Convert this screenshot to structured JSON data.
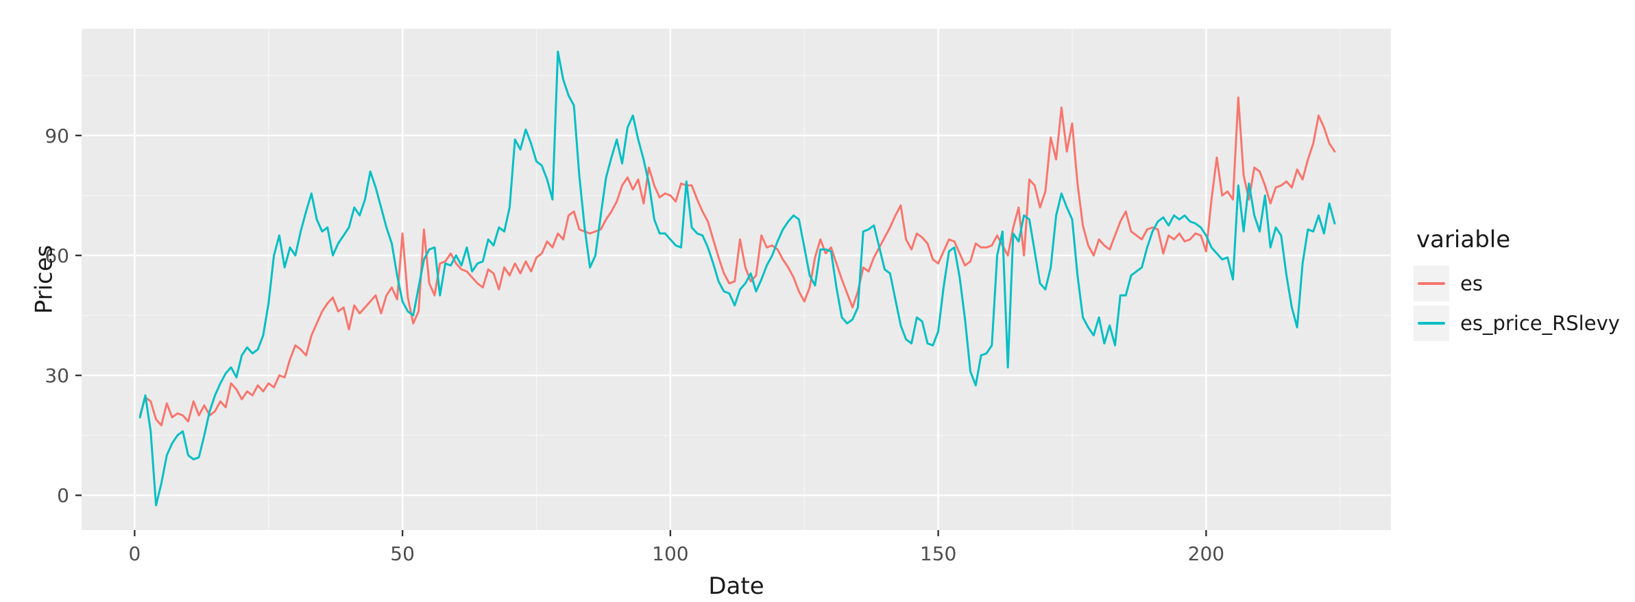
{
  "axes": {
    "y_title": "Prices",
    "x_title": "Date"
  },
  "legend": {
    "title": "variable",
    "entries": [
      {
        "label": "es",
        "color": "#F8766D"
      },
      {
        "label": "es_price_RSlevy",
        "color": "#00BFC4"
      }
    ]
  },
  "colors": {
    "panel_background": "#EBEBEB",
    "grid_major": "#FFFFFF",
    "grid_minor": "#F7F7F7",
    "tick_mark": "#333333",
    "tick_label": "#4D4D4D",
    "series_es": "#F8766D",
    "series_es_price_RSlevy": "#00BFC4"
  },
  "chart_data": {
    "type": "line",
    "title": "",
    "xlabel": "Date",
    "ylabel": "Prices",
    "xlim": [
      -9.9,
      234.5
    ],
    "ylim": [
      -8.7,
      116.7
    ],
    "x_ticks": [
      0,
      50,
      100,
      150,
      200
    ],
    "y_ticks": [
      0,
      30,
      60,
      90
    ],
    "x_minor": [
      25,
      75,
      125,
      175,
      225
    ],
    "y_minor": [
      15,
      45,
      75,
      105
    ],
    "grid": true,
    "legend_position": "right",
    "legend_title": "variable",
    "x_start": 1,
    "series": [
      {
        "name": "es",
        "color": "#F8766D",
        "values": [
          20,
          24.5,
          23.5,
          19,
          17.5,
          23,
          19.5,
          20.5,
          20,
          18.5,
          23.5,
          20,
          22.5,
          20,
          21,
          23.5,
          22,
          28,
          26.5,
          24,
          26,
          25,
          27.5,
          26,
          28,
          27,
          30,
          29.5,
          34,
          37.5,
          36.5,
          35,
          40,
          43,
          46,
          48,
          49.5,
          46,
          47,
          41.5,
          47.5,
          45.5,
          47,
          48.5,
          50,
          45.5,
          50,
          52,
          49,
          65.5,
          49.5,
          43,
          46,
          66.5,
          53,
          50,
          58,
          58.5,
          60.5,
          58,
          56.5,
          56,
          54.5,
          53,
          52,
          56.5,
          55.5,
          51.5,
          57,
          55,
          58,
          55.5,
          58.5,
          56,
          59.5,
          60.5,
          63.5,
          62,
          65.5,
          64,
          70,
          71,
          66.5,
          66,
          65.5,
          66,
          66.5,
          69,
          71,
          73.5,
          77.5,
          79.5,
          76.5,
          79,
          73,
          82,
          77.5,
          74.5,
          75.5,
          75,
          73.5,
          78,
          77.5,
          77.5,
          74,
          71,
          68.5,
          64,
          59.5,
          55.5,
          53,
          53.5,
          64,
          57,
          53.5,
          55,
          65,
          62,
          62.5,
          61.5,
          59,
          57,
          54.5,
          51,
          48.5,
          52,
          59.5,
          64,
          60.5,
          62,
          58,
          54,
          50.5,
          47,
          51,
          57,
          56,
          59.5,
          62,
          64.5,
          67,
          70,
          72.5,
          64,
          61.5,
          65.5,
          64.5,
          63,
          59,
          58,
          61,
          64,
          63.5,
          60.5,
          57.5,
          58.5,
          63,
          62,
          62,
          62.5,
          65,
          62.5,
          60,
          67,
          72,
          60,
          79,
          77.5,
          72,
          76,
          89.5,
          84,
          97,
          86,
          93,
          78,
          67.5,
          62.5,
          60,
          64,
          62.5,
          61.5,
          65,
          68.5,
          71,
          66,
          65,
          64,
          66.5,
          67,
          66.5,
          60.5,
          65,
          64,
          65.5,
          63.5,
          64,
          65.5,
          65,
          61,
          74,
          84.5,
          75,
          76,
          74,
          99.5,
          80,
          74,
          82,
          81,
          77.5,
          73,
          77,
          77.5,
          78.5,
          77,
          81.5,
          79,
          84,
          88,
          95,
          92,
          88,
          86
        ]
      },
      {
        "name": "es_price_RSlevy",
        "color": "#00BFC4",
        "values": [
          19.5,
          25,
          16,
          -2.5,
          3,
          10,
          13,
          15,
          16,
          10,
          9,
          9.5,
          15,
          21,
          25,
          28,
          30.5,
          32,
          29.5,
          35,
          37,
          35.5,
          36.5,
          40,
          48,
          60,
          65,
          57,
          62,
          60,
          66,
          71,
          75.5,
          69,
          66,
          67,
          60,
          63,
          65,
          67,
          72,
          70,
          74,
          81,
          77,
          72,
          67,
          63,
          55,
          48.5,
          46,
          45,
          52,
          59,
          61.5,
          62,
          50,
          58,
          57.5,
          60,
          57.5,
          62,
          56,
          58,
          58.5,
          64,
          62.5,
          67,
          66,
          72,
          89,
          86.5,
          91.5,
          88,
          83.5,
          82.5,
          79,
          74,
          111,
          104,
          100,
          97.5,
          80,
          67,
          57,
          60,
          70,
          79.5,
          84.5,
          89,
          83,
          92,
          95,
          89,
          84,
          78,
          69,
          65.5,
          65.5,
          64,
          62.5,
          62,
          78.5,
          67,
          65.5,
          65,
          62,
          58,
          53.5,
          51,
          50.5,
          47.5,
          51.5,
          53,
          55.5,
          51,
          54,
          57.5,
          60,
          63.5,
          66.5,
          68.5,
          70,
          69,
          62,
          55,
          52.5,
          61.5,
          61.5,
          61,
          52,
          44.5,
          43,
          44,
          47,
          66,
          66.5,
          67.5,
          62,
          56.5,
          55.5,
          49,
          42.5,
          39,
          38,
          44.5,
          43.5,
          38,
          37.5,
          41,
          52,
          61,
          62,
          54.5,
          44,
          31,
          27.5,
          35,
          35.5,
          37.5,
          60,
          66,
          32,
          65.5,
          63.5,
          70,
          69,
          61,
          53,
          51.5,
          57,
          70,
          75.5,
          72,
          69,
          55,
          44.5,
          42,
          40,
          44.5,
          38,
          42.5,
          37.5,
          50,
          50,
          55,
          56,
          57,
          62,
          66,
          68.5,
          69.5,
          67.5,
          70,
          69,
          70,
          68.5,
          68,
          67,
          65,
          62,
          60.5,
          59,
          59.5,
          54,
          77.5,
          66,
          78,
          70,
          66,
          75,
          62,
          67,
          65,
          55,
          47,
          42,
          58,
          66.5,
          66,
          70,
          65.5,
          73,
          68
        ]
      }
    ]
  }
}
